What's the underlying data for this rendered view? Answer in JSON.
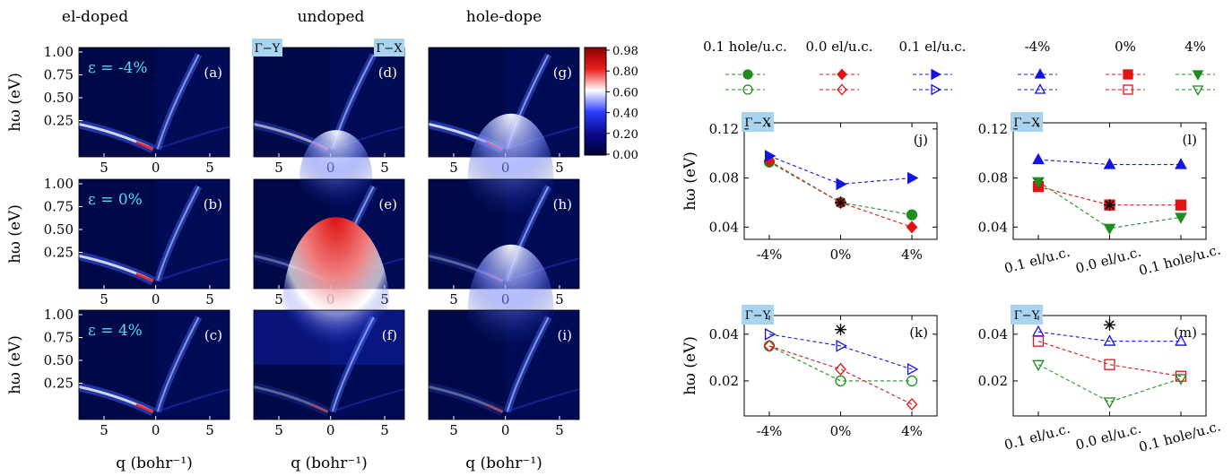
{
  "figure": {
    "column_titles": [
      "el-doped",
      "undoped",
      "hole-dope"
    ],
    "heatmap_xlabel": "q (bohr⁻¹)",
    "heatmap_ylabel": "hω (eV)",
    "strain_labels": [
      "ε = -4%",
      "ε = 0%",
      "ε = 4%"
    ],
    "direction_labels": {
      "gamma_y": "Γ−Y",
      "gamma_x": "Γ−X"
    },
    "colorbar": {
      "ticks": [
        "0.98",
        "0.80",
        "0.60",
        "0.40",
        "0.20",
        "0.00"
      ],
      "colors": [
        "#8b0000",
        "#e8201c",
        "#ffffff",
        "#2b3dff",
        "#0a0a8c",
        "#000033"
      ]
    },
    "legend_doping": [
      {
        "label": "0.1 hole/u.c.",
        "color": "#1e8c1e",
        "marker_filled": "circle",
        "marker_open": "circle"
      },
      {
        "label": "0.0 el/u.c.",
        "color": "#e01414",
        "marker_filled": "diamond",
        "marker_open": "diamond"
      },
      {
        "label": "0.1 el/u.c.",
        "color": "#1414e0",
        "marker_filled": "triangle-right",
        "marker_open": "triangle-right"
      }
    ],
    "legend_strain": [
      {
        "label": "-4%",
        "color": "#1414e0",
        "marker_filled": "triangle-up",
        "marker_open": "triangle-up"
      },
      {
        "label": "0%",
        "color": "#e01414",
        "marker_filled": "square",
        "marker_open": "square"
      },
      {
        "label": "4%",
        "color": "#1e8c1e",
        "marker_filled": "triangle-down",
        "marker_open": "triangle-down"
      }
    ]
  },
  "chart_data": [
    {
      "type": "heatmap",
      "panel": "(a)",
      "column": "el-doped",
      "strain": "-4%",
      "ylim": [
        0,
        1.0
      ],
      "yticks": [
        "1.00",
        "0.75",
        "0.50",
        "0.25"
      ],
      "xticks": [
        "5",
        "0",
        "5"
      ],
      "dispersion": "strong",
      "upper_glow": 0.0
    },
    {
      "type": "heatmap",
      "panel": "(b)",
      "column": "el-doped",
      "strain": "0%",
      "ylim": [
        0,
        1.0
      ],
      "yticks": [
        "1.00",
        "0.75",
        "0.50",
        "0.25"
      ],
      "xticks": [
        "5",
        "0",
        "5"
      ],
      "dispersion": "strong",
      "upper_glow": 0.0
    },
    {
      "type": "heatmap",
      "panel": "(c)",
      "column": "el-doped",
      "strain": "4%",
      "ylim": [
        0,
        1.0
      ],
      "yticks": [
        "1.00",
        "0.75",
        "0.50",
        "0.25"
      ],
      "xticks": [
        "5",
        "0",
        "5"
      ],
      "dispersion": "strong",
      "upper_glow": 0.0
    },
    {
      "type": "heatmap",
      "panel": "(d)",
      "column": "undoped",
      "strain": "-4%",
      "ylim": [
        0,
        1.0
      ],
      "xticks": [
        "5",
        "0",
        "5"
      ],
      "dispersion": "medium",
      "upper_glow": 0.0
    },
    {
      "type": "heatmap",
      "panel": "(e)",
      "column": "undoped",
      "strain": "0%",
      "ylim": [
        0,
        1.0
      ],
      "xticks": [
        "5",
        "0",
        "5"
      ],
      "dispersion": "weak",
      "upper_glow": 0.2
    },
    {
      "type": "heatmap",
      "panel": "(f)",
      "column": "undoped",
      "strain": "4%",
      "ylim": [
        0,
        1.0
      ],
      "xticks": [
        "5",
        "0",
        "5"
      ],
      "dispersion": "weak",
      "upper_glow": 1.0
    },
    {
      "type": "heatmap",
      "panel": "(g)",
      "column": "hole-dope",
      "strain": "-4%",
      "ylim": [
        0,
        1.0
      ],
      "xticks": [
        "5",
        "0",
        "5"
      ],
      "dispersion": "strong",
      "upper_glow": 0.0
    },
    {
      "type": "heatmap",
      "panel": "(h)",
      "column": "hole-dope",
      "strain": "0%",
      "ylim": [
        0,
        1.0
      ],
      "xticks": [
        "5",
        "0",
        "5"
      ],
      "dispersion": "weak",
      "upper_glow": 0.5
    },
    {
      "type": "heatmap",
      "panel": "(i)",
      "column": "hole-dope",
      "strain": "4%",
      "ylim": [
        0,
        1.0
      ],
      "xticks": [
        "5",
        "0",
        "5"
      ],
      "dispersion": "weak",
      "upper_glow": 0.5
    },
    {
      "type": "line",
      "panel": "(j)",
      "direction": "Γ−X",
      "ylabel": "hω (eV)",
      "categories": [
        "-4%",
        "0%",
        "4%"
      ],
      "ylim": [
        0.03,
        0.125
      ],
      "yticks": [
        0.04,
        0.08,
        0.12
      ],
      "series": [
        {
          "legend": "0.1 hole/u.c.",
          "marker": "circle",
          "filled": true,
          "color": "#1e8c1e",
          "values": [
            0.093,
            0.06,
            0.05
          ]
        },
        {
          "legend": "0.0 el/u.c.",
          "marker": "diamond",
          "filled": true,
          "color": "#e01414",
          "values": [
            0.094,
            0.06,
            0.04
          ]
        },
        {
          "legend": "0.1 el/u.c.",
          "marker": "triangle-right",
          "filled": true,
          "color": "#1414e0",
          "values": [
            0.098,
            0.075,
            0.08
          ]
        }
      ],
      "stars": [
        {
          "x": "0%",
          "y": 0.06
        }
      ]
    },
    {
      "type": "line",
      "panel": "(k)",
      "direction": "Γ−Y",
      "ylabel": "hω (eV)",
      "categories": [
        "-4%",
        "0%",
        "4%"
      ],
      "ylim": [
        0.005,
        0.048
      ],
      "yticks": [
        0.02,
        0.04
      ],
      "series": [
        {
          "legend": "0.1 hole/u.c.",
          "marker": "circle",
          "filled": false,
          "color": "#1e8c1e",
          "values": [
            0.035,
            0.02,
            0.02
          ]
        },
        {
          "legend": "0.0 el/u.c.",
          "marker": "diamond",
          "filled": false,
          "color": "#e01414",
          "values": [
            0.035,
            0.025,
            0.01
          ]
        },
        {
          "legend": "0.1 el/u.c.",
          "marker": "triangle-right",
          "filled": false,
          "color": "#1414e0",
          "values": [
            0.04,
            0.035,
            0.025
          ]
        }
      ],
      "stars": [
        {
          "x": "0%",
          "y": 0.042
        }
      ]
    },
    {
      "type": "line",
      "panel": "(l)",
      "direction": "Γ−X",
      "categories": [
        "0.1 el/u.c.",
        "0.0 el/u.c.",
        "0.1 hole/u.c."
      ],
      "ylim": [
        0.03,
        0.125
      ],
      "yticks": [
        0.04,
        0.08,
        0.12
      ],
      "series": [
        {
          "legend": "-4%",
          "marker": "triangle-up",
          "filled": true,
          "color": "#1414e0",
          "values": [
            0.095,
            0.091,
            0.091
          ]
        },
        {
          "legend": "0%",
          "marker": "square",
          "filled": true,
          "color": "#e01414",
          "values": [
            0.073,
            0.058,
            0.058
          ]
        },
        {
          "legend": "4%",
          "marker": "triangle-down",
          "filled": true,
          "color": "#1e8c1e",
          "values": [
            0.077,
            0.039,
            0.048
          ]
        }
      ],
      "stars": [
        {
          "x": "0.0 el/u.c.",
          "y": 0.058
        }
      ]
    },
    {
      "type": "line",
      "panel": "(m)",
      "direction": "Γ−Y",
      "categories": [
        "0.1 el/u.c.",
        "0.0 el/u.c.",
        "0.1 hole/u.c."
      ],
      "ylim": [
        0.005,
        0.048
      ],
      "yticks": [
        0.02,
        0.04
      ],
      "series": [
        {
          "legend": "-4%",
          "marker": "triangle-up",
          "filled": false,
          "color": "#1414e0",
          "values": [
            0.041,
            0.037,
            0.037
          ]
        },
        {
          "legend": "0%",
          "marker": "square",
          "filled": false,
          "color": "#e01414",
          "values": [
            0.037,
            0.027,
            0.022
          ]
        },
        {
          "legend": "4%",
          "marker": "triangle-down",
          "filled": false,
          "color": "#1e8c1e",
          "values": [
            0.027,
            0.011,
            0.021
          ]
        }
      ],
      "stars": [
        {
          "x": "0.0 el/u.c.",
          "y": 0.044
        }
      ]
    }
  ]
}
